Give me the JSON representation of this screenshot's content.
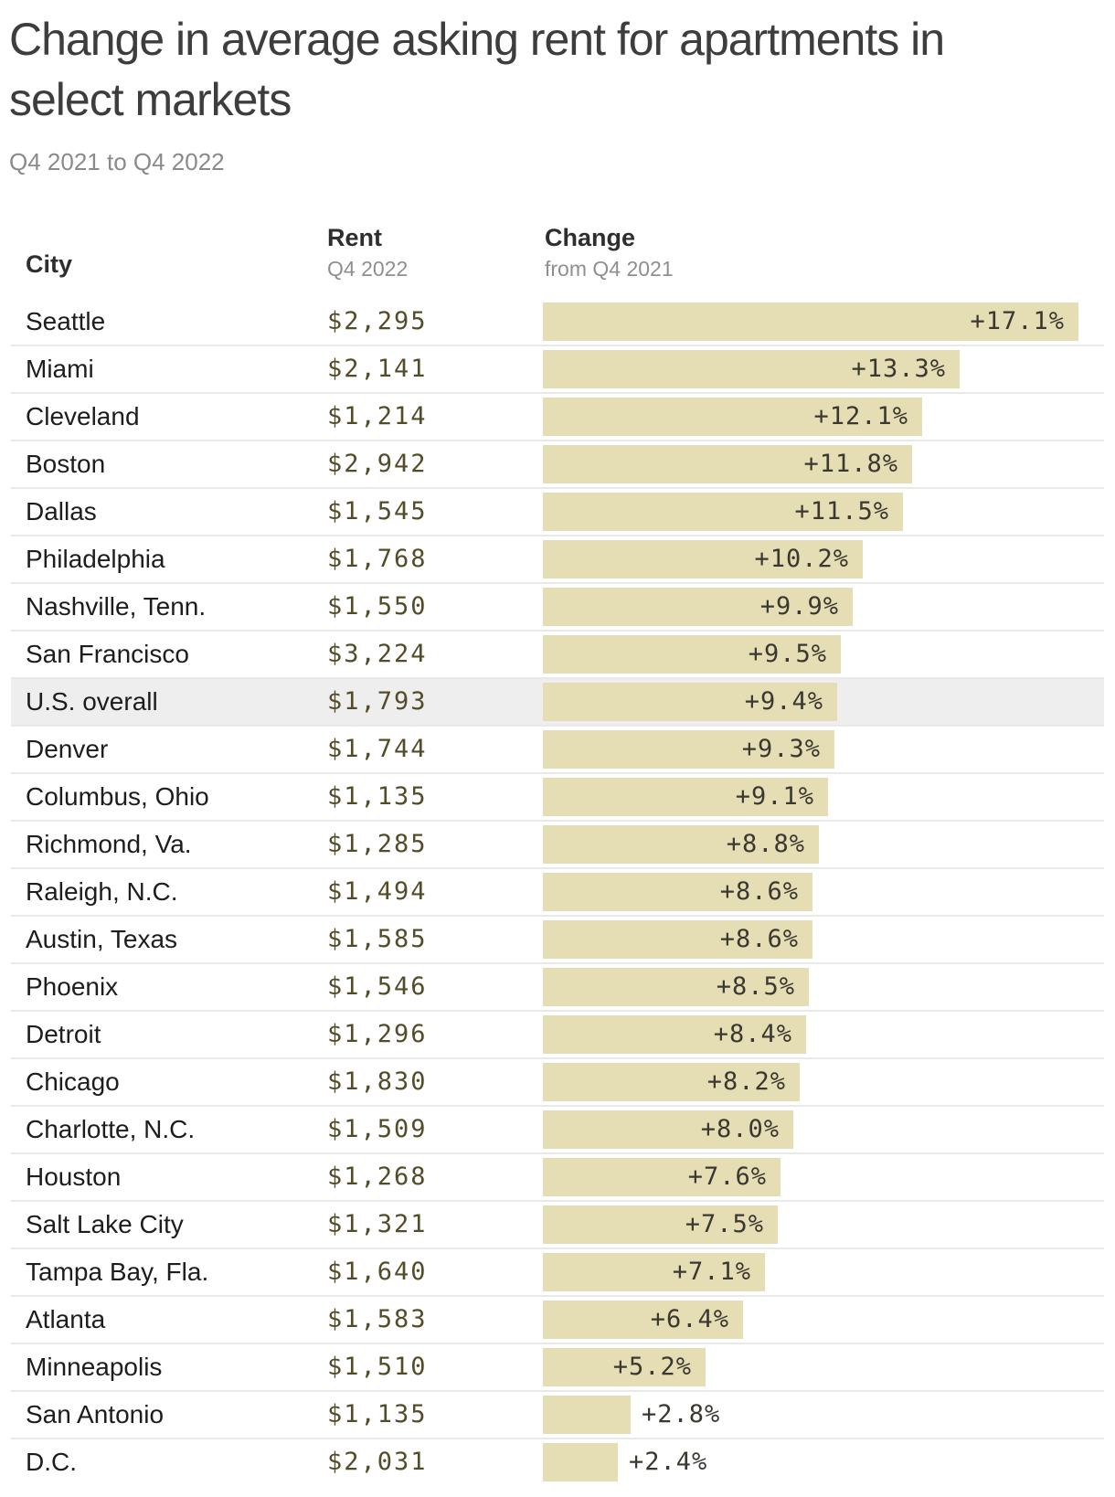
{
  "header": {
    "title": "Change in average asking rent for apartments in select markets",
    "title_lines": [
      "Change in average asking rent for apartments in",
      "select markets"
    ],
    "subtitle": "Q4 2021 to Q4 2022"
  },
  "columns": {
    "city": "City",
    "rent": "Rent",
    "rent_sub": "Q4 2022",
    "change": "Change",
    "change_sub": "from Q4 2021"
  },
  "colors": {
    "bar_fill": "#e5ddb3",
    "highlight_row_bg": "#eeeeee",
    "separator": "#e9e9e9",
    "rent_text": "#534c29",
    "pct_text": "#3a3830",
    "city_text": "#1d1d1d"
  },
  "rows": [
    {
      "city": "Seattle",
      "rent": "$2,295",
      "change": 17.1,
      "change_label": "+17.1%",
      "highlight": false
    },
    {
      "city": "Miami",
      "rent": "$2,141",
      "change": 13.3,
      "change_label": "+13.3%",
      "highlight": false
    },
    {
      "city": "Cleveland",
      "rent": "$1,214",
      "change": 12.1,
      "change_label": "+12.1%",
      "highlight": false
    },
    {
      "city": "Boston",
      "rent": "$2,942",
      "change": 11.8,
      "change_label": "+11.8%",
      "highlight": false
    },
    {
      "city": "Dallas",
      "rent": "$1,545",
      "change": 11.5,
      "change_label": "+11.5%",
      "highlight": false
    },
    {
      "city": "Philadelphia",
      "rent": "$1,768",
      "change": 10.2,
      "change_label": "+10.2%",
      "highlight": false
    },
    {
      "city": "Nashville, Tenn.",
      "rent": "$1,550",
      "change": 9.9,
      "change_label": "+9.9%",
      "highlight": false
    },
    {
      "city": "San Francisco",
      "rent": "$3,224",
      "change": 9.5,
      "change_label": "+9.5%",
      "highlight": false
    },
    {
      "city": "U.S. overall",
      "rent": "$1,793",
      "change": 9.4,
      "change_label": "+9.4%",
      "highlight": true
    },
    {
      "city": "Denver",
      "rent": "$1,744",
      "change": 9.3,
      "change_label": "+9.3%",
      "highlight": false
    },
    {
      "city": "Columbus, Ohio",
      "rent": "$1,135",
      "change": 9.1,
      "change_label": "+9.1%",
      "highlight": false
    },
    {
      "city": "Richmond, Va.",
      "rent": "$1,285",
      "change": 8.8,
      "change_label": "+8.8%",
      "highlight": false
    },
    {
      "city": "Raleigh, N.C.",
      "rent": "$1,494",
      "change": 8.6,
      "change_label": "+8.6%",
      "highlight": false
    },
    {
      "city": "Austin, Texas",
      "rent": "$1,585",
      "change": 8.6,
      "change_label": "+8.6%",
      "highlight": false
    },
    {
      "city": "Phoenix",
      "rent": "$1,546",
      "change": 8.5,
      "change_label": "+8.5%",
      "highlight": false
    },
    {
      "city": "Detroit",
      "rent": "$1,296",
      "change": 8.4,
      "change_label": "+8.4%",
      "highlight": false
    },
    {
      "city": "Chicago",
      "rent": "$1,830",
      "change": 8.2,
      "change_label": "+8.2%",
      "highlight": false
    },
    {
      "city": "Charlotte, N.C.",
      "rent": "$1,509",
      "change": 8.0,
      "change_label": "+8.0%",
      "highlight": false
    },
    {
      "city": "Houston",
      "rent": "$1,268",
      "change": 7.6,
      "change_label": "+7.6%",
      "highlight": false
    },
    {
      "city": "Salt Lake City",
      "rent": "$1,321",
      "change": 7.5,
      "change_label": "+7.5%",
      "highlight": false
    },
    {
      "city": "Tampa Bay, Fla.",
      "rent": "$1,640",
      "change": 7.1,
      "change_label": "+7.1%",
      "highlight": false
    },
    {
      "city": "Atlanta",
      "rent": "$1,583",
      "change": 6.4,
      "change_label": "+6.4%",
      "highlight": false
    },
    {
      "city": "Minneapolis",
      "rent": "$1,510",
      "change": 5.2,
      "change_label": "+5.2%",
      "highlight": false
    },
    {
      "city": "San Antonio",
      "rent": "$1,135",
      "change": 2.8,
      "change_label": "+2.8%",
      "highlight": false
    },
    {
      "city": "D.C.",
      "rent": "$2,031",
      "change": 2.4,
      "change_label": "+2.4%",
      "highlight": false
    }
  ],
  "chart_data": {
    "type": "bar",
    "orientation": "horizontal",
    "title": "Change in average asking rent for apartments in select markets",
    "subtitle": "Q4 2021 to Q4 2022",
    "categories": [
      "Seattle",
      "Miami",
      "Cleveland",
      "Boston",
      "Dallas",
      "Philadelphia",
      "Nashville, Tenn.",
      "San Francisco",
      "U.S. overall",
      "Denver",
      "Columbus, Ohio",
      "Richmond, Va.",
      "Raleigh, N.C.",
      "Austin, Texas",
      "Phoenix",
      "Detroit",
      "Chicago",
      "Charlotte, N.C.",
      "Houston",
      "Salt Lake City",
      "Tampa Bay, Fla.",
      "Atlanta",
      "Minneapolis",
      "San Antonio",
      "D.C."
    ],
    "series": [
      {
        "name": "Rent Q4 2022 ($)",
        "values": [
          2295,
          2141,
          1214,
          2942,
          1545,
          1768,
          1550,
          3224,
          1793,
          1744,
          1135,
          1285,
          1494,
          1585,
          1546,
          1296,
          1830,
          1509,
          1268,
          1321,
          1640,
          1583,
          1510,
          1135,
          2031
        ]
      },
      {
        "name": "Change from Q4 2021 (%)",
        "values": [
          17.1,
          13.3,
          12.1,
          11.8,
          11.5,
          10.2,
          9.9,
          9.5,
          9.4,
          9.3,
          9.1,
          8.8,
          8.6,
          8.6,
          8.5,
          8.4,
          8.2,
          8.0,
          7.6,
          7.5,
          7.1,
          6.4,
          5.2,
          2.8,
          2.4
        ]
      }
    ],
    "xlabel": "Change from Q4 2021 (%)",
    "ylabel": "City",
    "xlim": [
      0,
      17.1
    ],
    "grid": false,
    "legend": false,
    "bar_color": "#e5ddb3",
    "highlighted_category": "U.S. overall"
  },
  "layout_constants": {
    "max_change_value": 17.1
  }
}
